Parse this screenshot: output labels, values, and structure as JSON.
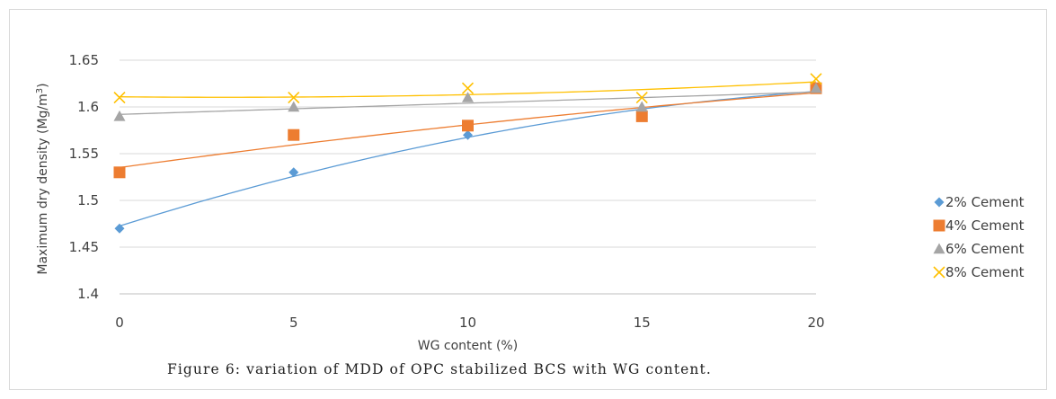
{
  "chart_data": {
    "type": "line",
    "x": [
      0,
      5,
      10,
      15,
      20
    ],
    "xlabel": "WG content (%)",
    "ylabel": "Maximum dry density (Mg/m",
    "ylabel_sup": "3",
    "ylabel_close": ")",
    "xlim": [
      0,
      20
    ],
    "ylim": [
      1.4,
      1.65
    ],
    "x_ticks": [
      "0",
      "5",
      "10",
      "15",
      "20"
    ],
    "y_ticks": [
      "1.4",
      "1.45",
      "1.5",
      "1.55",
      "1.6",
      "1.65"
    ],
    "grid": "horizontal",
    "legend_position": "right",
    "series": [
      {
        "name": "2% Cement",
        "values": [
          1.47,
          1.53,
          1.57,
          1.59,
          1.62
        ],
        "color": "#5b9bd5",
        "marker": "diamond"
      },
      {
        "name": "4% Cement",
        "values": [
          1.53,
          1.57,
          1.58,
          1.59,
          1.62
        ],
        "color": "#ed7d31",
        "marker": "square"
      },
      {
        "name": "6% Cement",
        "values": [
          1.59,
          1.6,
          1.61,
          1.6,
          1.62
        ],
        "color": "#a5a5a5",
        "marker": "triangle"
      },
      {
        "name": "8% Cement",
        "values": [
          1.61,
          1.61,
          1.62,
          1.61,
          1.63
        ],
        "color": "#ffc000",
        "marker": "x"
      }
    ]
  },
  "caption": "Figure 6: variation of MDD of OPC stabilized BCS with WG content."
}
